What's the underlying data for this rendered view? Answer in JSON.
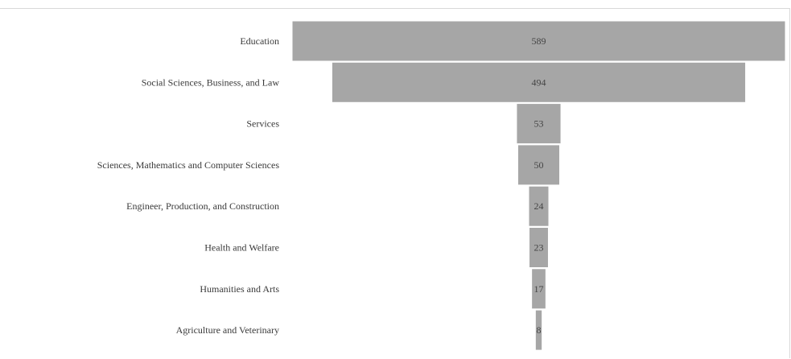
{
  "chart_data": {
    "type": "funnel",
    "categories": [
      "Education",
      "Social Sciences, Business, and Law",
      "Services",
      "Sciences, Mathematics and Computer Sciences",
      "Engineer, Production, and Construction",
      "Health and Welfare",
      "Humanities and Arts",
      "Agriculture and Veterinary"
    ],
    "values": [
      589,
      494,
      53,
      50,
      24,
      23,
      17,
      8
    ],
    "bar_color": "#a6a6a6",
    "label_color": "#3a3a3a",
    "title": "",
    "legend": false,
    "grid": false
  }
}
